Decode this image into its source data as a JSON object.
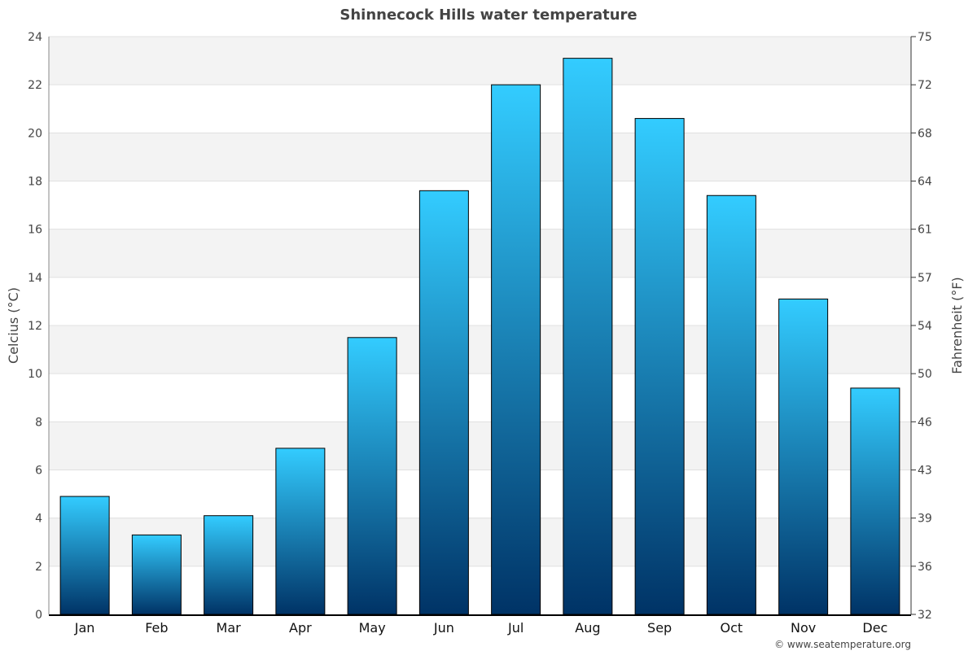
{
  "chart_data": {
    "type": "bar",
    "title": "Shinnecock Hills water temperature",
    "ylabel": "Celcius (°C)",
    "ylabel_right": "Fahrenheit (°F)",
    "categories": [
      "Jan",
      "Feb",
      "Mar",
      "Apr",
      "May",
      "Jun",
      "Jul",
      "Aug",
      "Sep",
      "Oct",
      "Nov",
      "Dec"
    ],
    "values": [
      4.9,
      3.3,
      4.1,
      6.9,
      11.5,
      17.6,
      22.0,
      23.1,
      20.6,
      17.4,
      13.1,
      9.4
    ],
    "ylim": [
      0,
      24
    ],
    "yticks": [
      0,
      2,
      4,
      6,
      8,
      10,
      12,
      14,
      16,
      18,
      20,
      22,
      24
    ],
    "yticks_right": [
      "32",
      "36",
      "39",
      "43",
      "46",
      "50",
      "54",
      "57",
      "61",
      "64",
      "68",
      "72",
      "75"
    ],
    "grid": true,
    "band_color": "#f3f3f3",
    "bar_gradient": [
      "#33ccff",
      "#003366"
    ],
    "credit": "© www.seatemperature.org"
  }
}
